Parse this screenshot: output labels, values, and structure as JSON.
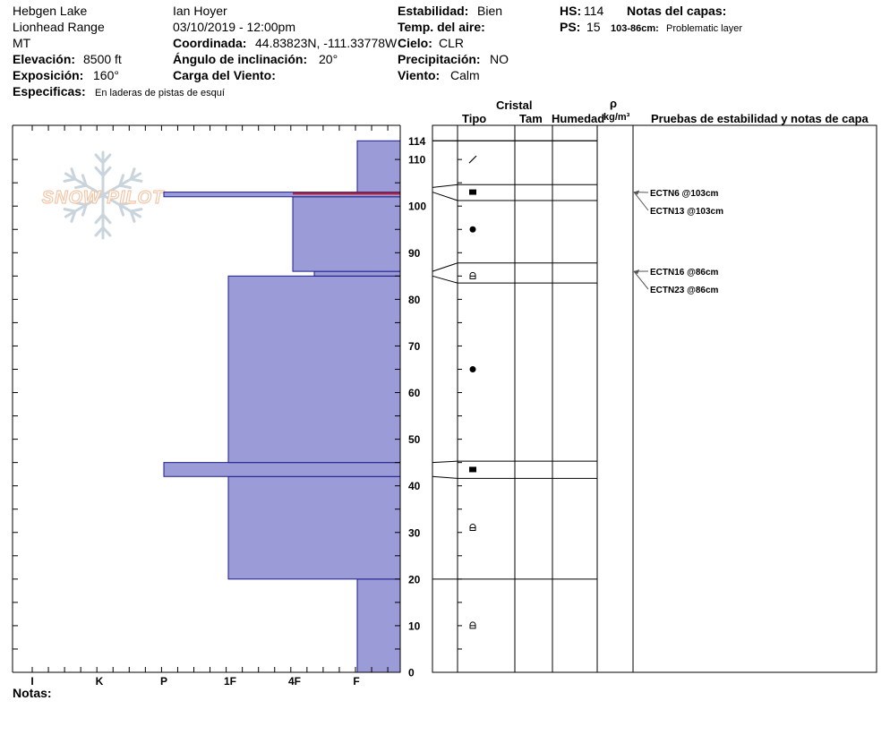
{
  "header": {
    "location": "Hebgen Lake",
    "range": "Lionhead Range",
    "state": "MT",
    "elevation_label": "Elevación:",
    "elevation_value": "8500 ft",
    "aspect_label": "Exposición:",
    "aspect_value": "160°",
    "specifics_label": "Especificas:",
    "specifics_value": "En laderas de pistas de esquí",
    "observer": "Ian Hoyer",
    "datetime": "03/10/2019 - 12:00pm",
    "coord_label": "Coordinada:",
    "coord_value": "44.83823N, -111.33778W",
    "slope_label": "Ángulo de inclinación:",
    "slope_value": "20°",
    "wind_load_label": "Carga del Viento:",
    "stability_label": "Estabilidad:",
    "stability_value": "Bien",
    "air_temp_label": "Temp. del aire:",
    "sky_label": "Cielo:",
    "sky_value": "CLR",
    "precip_label": "Precipitación:",
    "precip_value": "NO",
    "wind_label": "Viento:",
    "wind_value": "Calm",
    "hs_label": "HS:",
    "hs_value": "114",
    "ps_label": "PS:",
    "ps_value": "15",
    "layer_notes_label": "Notas del capas:",
    "layer_note_range": "103-86cm:",
    "layer_note_text": "Problematic layer"
  },
  "logo": {
    "text": "SNOW PILOT"
  },
  "notes_label": "Notas:",
  "columns": {
    "crystal": "Cristal",
    "type": "Tipo",
    "size": "Tam",
    "moisture": "Humedad",
    "rho": "ρ",
    "density_unit": "kg/m³",
    "tests": "Pruebas de estabilidad y notas de capa"
  },
  "chart_data": {
    "type": "bar",
    "orientation": "horizontal",
    "hardness_scale": [
      "F",
      "4F",
      "1F",
      "P",
      "K",
      "I"
    ],
    "xlabels": [
      "I",
      "K",
      "P",
      "1F",
      "4F",
      "F"
    ],
    "ylim": [
      0,
      114
    ],
    "yticks": [
      0,
      10,
      20,
      30,
      40,
      50,
      60,
      70,
      80,
      90,
      100,
      110,
      114
    ],
    "layers": [
      {
        "bottom": 0,
        "top": 20,
        "hardness": "F"
      },
      {
        "bottom": 20,
        "top": 42,
        "hardness": "1F"
      },
      {
        "bottom": 42,
        "top": 45,
        "hardness": "P"
      },
      {
        "bottom": 45,
        "top": 85,
        "hardness": "1F"
      },
      {
        "bottom": 85,
        "top": 86,
        "hardness": "4F-"
      },
      {
        "bottom": 86,
        "top": 102,
        "hardness": "4F"
      },
      {
        "bottom": 102,
        "top": 103,
        "hardness": "P"
      },
      {
        "bottom": 103,
        "top": 114,
        "hardness": "F"
      }
    ],
    "layer_boundaries": [
      20,
      42,
      45,
      84,
      86,
      101,
      103,
      114
    ],
    "grain_symbols": [
      {
        "depth": 10,
        "symbol": "faceted-rounded"
      },
      {
        "depth": 31,
        "symbol": "faceted-rounded"
      },
      {
        "depth": 43.5,
        "symbol": "faceted"
      },
      {
        "depth": 65,
        "symbol": "rounded"
      },
      {
        "depth": 85,
        "symbol": "faceted-rounded"
      },
      {
        "depth": 95,
        "symbol": "rounded"
      },
      {
        "depth": 103,
        "symbol": "faceted"
      },
      {
        "depth": 110,
        "symbol": "decomposing"
      }
    ],
    "stability_tests": [
      {
        "label": "ECTN6 @103cm",
        "depth": 103
      },
      {
        "label": "ECTN13 @103cm",
        "depth": 103
      },
      {
        "label": "ECTN16 @86cm",
        "depth": 86
      },
      {
        "label": "ECTN23 @86cm",
        "depth": 86
      }
    ],
    "colors": {
      "fill": "#9b9bd7",
      "stroke": "#1c1c8c",
      "problem_layer": "#b1202d"
    }
  }
}
